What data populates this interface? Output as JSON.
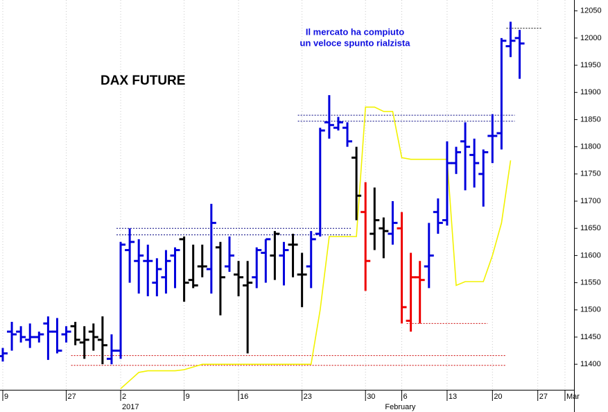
{
  "chart_data": {
    "type": "ohlc",
    "title": "DAX FUTURE",
    "annotation": [
      "Il mercato ha compiuto",
      "un veloce spunto rialzista"
    ],
    "period_labels": [
      "2017",
      "February"
    ],
    "categories": [
      "9",
      null,
      null,
      null,
      null,
      null,
      null,
      "27",
      null,
      null,
      null,
      null,
      null,
      "2",
      null,
      null,
      null,
      null,
      null,
      null,
      "9",
      null,
      null,
      null,
      null,
      null,
      "16",
      null,
      null,
      null,
      null,
      null,
      null,
      "23",
      null,
      null,
      null,
      null,
      null,
      null,
      "30",
      null,
      null,
      null,
      "6",
      null,
      null,
      null,
      null,
      "13",
      null,
      null,
      null,
      null,
      "20",
      null,
      null,
      null,
      null,
      "27",
      null,
      null,
      "Mar"
    ],
    "open": [
      11415,
      11460,
      11460,
      11445,
      11450,
      11475,
      11460,
      11455,
      11470,
      11440,
      11460,
      11445,
      11410,
      11425,
      11610,
      11590,
      11590,
      11550,
      11560,
      11600,
      11630,
      11555,
      11580,
      11575,
      11615,
      11580,
      11565,
      11545,
      11560,
      11605,
      11600,
      11600,
      11620,
      11565,
      11580,
      11640,
      11845,
      11835,
      11835,
      11780,
      11680,
      11640,
      11650,
      11640,
      11650,
      11480,
      11560,
      11580,
      11680,
      11665,
      11770,
      11810,
      11785,
      11750,
      11820,
      11825,
      11985,
      12000,
      null,
      null,
      null,
      null,
      null
    ],
    "high": [
      11430,
      11478,
      11470,
      11475,
      11460,
      11488,
      11485,
      11470,
      11478,
      11470,
      11475,
      11488,
      11455,
      11625,
      11650,
      11630,
      11620,
      11595,
      11610,
      11615,
      11635,
      11620,
      11620,
      11695,
      11625,
      11635,
      11590,
      11590,
      11615,
      11630,
      11645,
      11625,
      11640,
      11605,
      11645,
      11835,
      11895,
      11855,
      11845,
      11800,
      11735,
      11725,
      11670,
      11700,
      11680,
      11605,
      11590,
      11660,
      11705,
      11810,
      11800,
      11845,
      11815,
      11795,
      11860,
      12000,
      12030,
      12015,
      null,
      null,
      null,
      null,
      null
    ],
    "low": [
      11405,
      11425,
      11440,
      11430,
      11440,
      11408,
      11420,
      11440,
      11435,
      11410,
      11425,
      11400,
      11400,
      11410,
      11550,
      11530,
      11525,
      11525,
      11530,
      11540,
      11515,
      11540,
      11560,
      11530,
      11490,
      11570,
      11525,
      11420,
      11540,
      11550,
      11555,
      11545,
      11560,
      11505,
      11540,
      11635,
      11815,
      11830,
      11800,
      11665,
      11535,
      11610,
      11595,
      11620,
      11475,
      11460,
      11475,
      11540,
      11640,
      11655,
      11750,
      11720,
      11725,
      11690,
      11770,
      11795,
      11965,
      11925,
      null,
      null,
      null,
      null,
      null
    ],
    "close": [
      11420,
      11455,
      11450,
      11450,
      11455,
      11460,
      11425,
      11460,
      11445,
      11445,
      11450,
      11435,
      11425,
      11620,
      11625,
      11600,
      11590,
      11575,
      11590,
      11610,
      11550,
      11545,
      11580,
      11660,
      11560,
      11600,
      11560,
      11550,
      11610,
      11630,
      11640,
      11610,
      11620,
      11565,
      11630,
      11830,
      11840,
      11845,
      11810,
      11710,
      11590,
      11665,
      11645,
      11660,
      11505,
      11560,
      11555,
      11600,
      11660,
      11770,
      11790,
      11800,
      11770,
      11790,
      11820,
      11995,
      11995,
      11990,
      null,
      null,
      null,
      null,
      null
    ],
    "bar_colors": [
      "#0000dd",
      "#0000dd",
      "#0000dd",
      "#0000dd",
      "#0000dd",
      "#0000dd",
      "#0000dd",
      "#0000dd",
      "#000000",
      "#000000",
      "#000000",
      "#000000",
      "#0000dd",
      "#0000dd",
      "#0000dd",
      "#0000dd",
      "#0000dd",
      "#0000dd",
      "#0000dd",
      "#0000dd",
      "#000000",
      "#000000",
      "#000000",
      "#0000dd",
      "#000000",
      "#0000dd",
      "#000000",
      "#000000",
      "#0000dd",
      "#0000dd",
      "#000000",
      "#0000dd",
      "#000000",
      "#000000",
      "#0000dd",
      "#0000dd",
      "#0000dd",
      "#0000dd",
      "#0000dd",
      "#000000",
      "#ee0000",
      "#000000",
      "#000000",
      "#0000dd",
      "#ee0000",
      "#ee0000",
      "#ee0000",
      "#0000dd",
      "#0000dd",
      "#0000dd",
      "#0000dd",
      "#0000dd",
      "#0000dd",
      "#0000dd",
      "#0000dd",
      "#0000dd",
      "#0000dd",
      "#0000dd",
      null,
      null,
      null,
      null,
      null
    ],
    "overlay": {
      "color": "#f2f200",
      "values": [
        null,
        null,
        null,
        null,
        null,
        null,
        null,
        null,
        null,
        null,
        null,
        null,
        null,
        11355,
        11370,
        11385,
        11388,
        11388,
        11388,
        11388,
        11390,
        11395,
        11400,
        11400,
        11400,
        11400,
        11400,
        11400,
        11400,
        11400,
        11400,
        11400,
        11400,
        11400,
        11400,
        11500,
        11635,
        11635,
        11635,
        11635,
        11873,
        11873,
        11865,
        11865,
        11780,
        11777,
        11777,
        11777,
        11777,
        11777,
        11545,
        11552,
        11552,
        11552,
        11600,
        11660,
        11775,
        null,
        null,
        null,
        null,
        null,
        null
      ]
    },
    "hlines": [
      {
        "value": 11650,
        "color": "#000080",
        "start": 13,
        "end": 38
      },
      {
        "value": 11638,
        "color": "#000080",
        "start": 13,
        "end": 38
      },
      {
        "value": 11858,
        "color": "#000080",
        "start": 33,
        "end": 56
      },
      {
        "value": 11847,
        "color": "#000080",
        "start": 33,
        "end": 56
      },
      {
        "value": 11416,
        "color": "#cc0000",
        "start": 8,
        "end": 55
      },
      {
        "value": 11398,
        "color": "#cc0000",
        "start": 8,
        "end": 55
      },
      {
        "value": 11475,
        "color": "#cc0000",
        "start": 45,
        "end": 53
      },
      {
        "value": 12018,
        "color": "#000000",
        "start": 56,
        "end": 59
      }
    ],
    "ylim": [
      11353,
      12070
    ],
    "yticks": [
      11400,
      11450,
      11500,
      11550,
      11600,
      11650,
      11700,
      11750,
      11800,
      11850,
      11900,
      11950,
      12000,
      12050
    ],
    "grid": true
  }
}
